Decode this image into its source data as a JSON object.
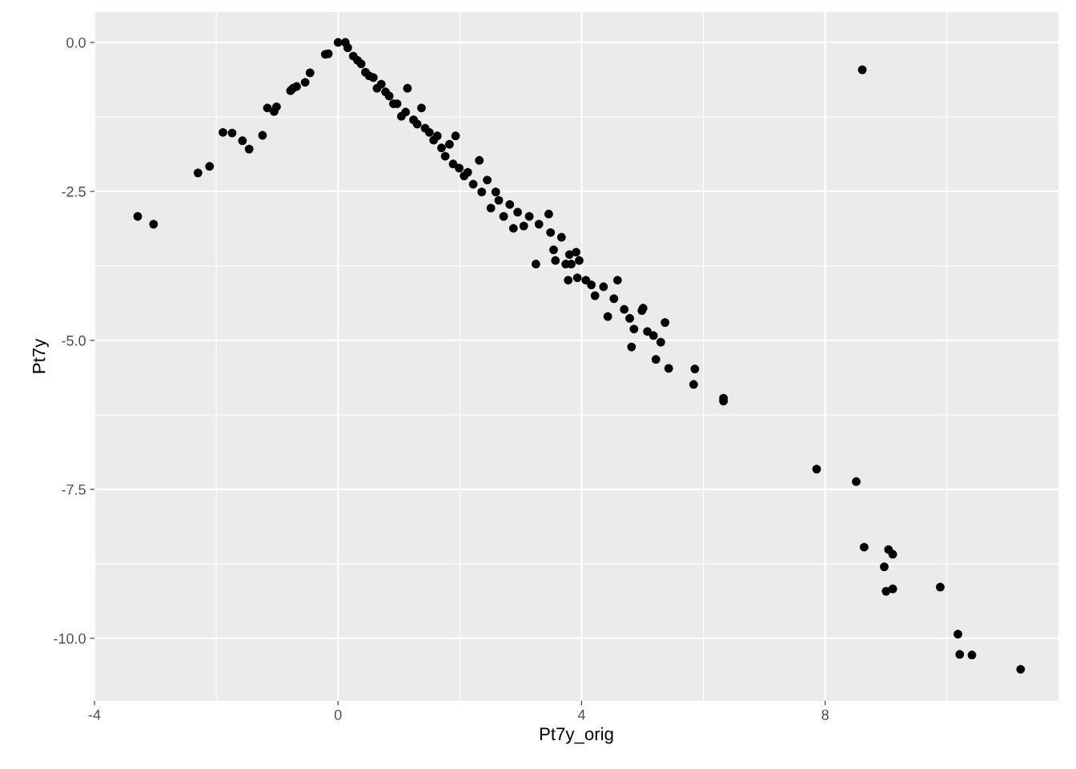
{
  "chart_data": {
    "type": "scatter",
    "xlabel": "Pt7y_orig",
    "ylabel": "Pt7y",
    "xlim": [
      -4,
      11.83
    ],
    "ylim": [
      -11.05,
      0.51
    ],
    "xticks": [
      -4,
      0,
      4,
      8
    ],
    "yticks": [
      {
        "value": 0,
        "label": "0.0"
      },
      {
        "value": -2.5,
        "label": "-2.5"
      },
      {
        "value": -5,
        "label": "-5.0"
      },
      {
        "value": -7.5,
        "label": "-7.5"
      },
      {
        "value": -10,
        "label": "-10.0"
      }
    ],
    "grid": true,
    "marker": "circle",
    "series": [
      {
        "color": "#000000",
        "x": [
          -3.29,
          -3.03,
          -2.3,
          -2.11,
          -1.89,
          -1.74,
          -1.57,
          -1.46,
          -1.24,
          -1.16,
          -1.05,
          -1.01,
          -0.78,
          -0.74,
          -0.68,
          -0.54,
          -0.46,
          -0.21,
          -0.16,
          0,
          0.12,
          0.16,
          0.25,
          0.32,
          0.38,
          0.45,
          0.51,
          0.58,
          0.64,
          0.71,
          0.78,
          0.84,
          0.91,
          0.97,
          1.04,
          1.14,
          1.11,
          1.24,
          1.3,
          1.37,
          1.43,
          1.5,
          1.57,
          1.63,
          1.7,
          1.76,
          1.83,
          1.89,
          1.93,
          1.99,
          2.07,
          2.13,
          2.22,
          2.32,
          2.36,
          2.45,
          2.51,
          2.59,
          2.64,
          2.72,
          2.82,
          2.88,
          2.95,
          3.05,
          3.14,
          3.25,
          3.3,
          3.46,
          3.49,
          3.54,
          3.57,
          3.67,
          3.74,
          3.8,
          3.83,
          3.91,
          3.96,
          3.78,
          3.93,
          4.07,
          4.16,
          4.22,
          4.36,
          4.43,
          4.53,
          4.59,
          4.7,
          4.79,
          4.82,
          4.86,
          4.99,
          5.01,
          5.08,
          5.18,
          5.22,
          5.3,
          5.37,
          5.43,
          5.86,
          5.84,
          6.33,
          6.33,
          7.86,
          8.51,
          8.61,
          8.64,
          8.97,
          9.04,
          9.11,
          9.0,
          9.11,
          9.89,
          10.18,
          10.21,
          10.41,
          11.21
        ],
        "values": [
          -2.92,
          -3.05,
          -2.19,
          -2.08,
          -1.51,
          -1.52,
          -1.65,
          -1.79,
          -1.56,
          -1.1,
          -1.16,
          -1.08,
          -0.81,
          -0.77,
          -0.74,
          -0.67,
          -0.51,
          -0.2,
          -0.19,
          0,
          0,
          -0.09,
          -0.23,
          -0.3,
          -0.36,
          -0.5,
          -0.56,
          -0.59,
          -0.77,
          -0.7,
          -0.83,
          -0.9,
          -1.03,
          -1.03,
          -1.24,
          -0.77,
          -1.17,
          -1.3,
          -1.37,
          -1.1,
          -1.44,
          -1.51,
          -1.64,
          -1.57,
          -1.77,
          -1.91,
          -1.71,
          -2.04,
          -1.57,
          -2.11,
          -2.24,
          -2.18,
          -2.38,
          -1.98,
          -2.51,
          -2.31,
          -2.78,
          -2.51,
          -2.65,
          -2.92,
          -2.72,
          -3.12,
          -2.85,
          -3.08,
          -2.92,
          -3.72,
          -3.05,
          -2.88,
          -3.19,
          -3.48,
          -3.66,
          -3.27,
          -3.72,
          -3.56,
          -3.72,
          -3.52,
          -3.66,
          -3.99,
          -3.95,
          -3.99,
          -4.07,
          -4.25,
          -4.1,
          -4.6,
          -4.3,
          -3.99,
          -4.48,
          -4.63,
          -5.11,
          -4.81,
          -4.5,
          -4.46,
          -4.85,
          -4.92,
          -5.32,
          -5.03,
          -4.7,
          -5.47,
          -5.48,
          -5.74,
          -5.97,
          -6.02,
          -7.16,
          -7.37,
          -0.46,
          -8.47,
          -8.8,
          -8.51,
          -8.59,
          -9.21,
          -9.17,
          -9.14,
          -9.93,
          -10.27,
          -10.28,
          -10.52
        ]
      }
    ]
  }
}
